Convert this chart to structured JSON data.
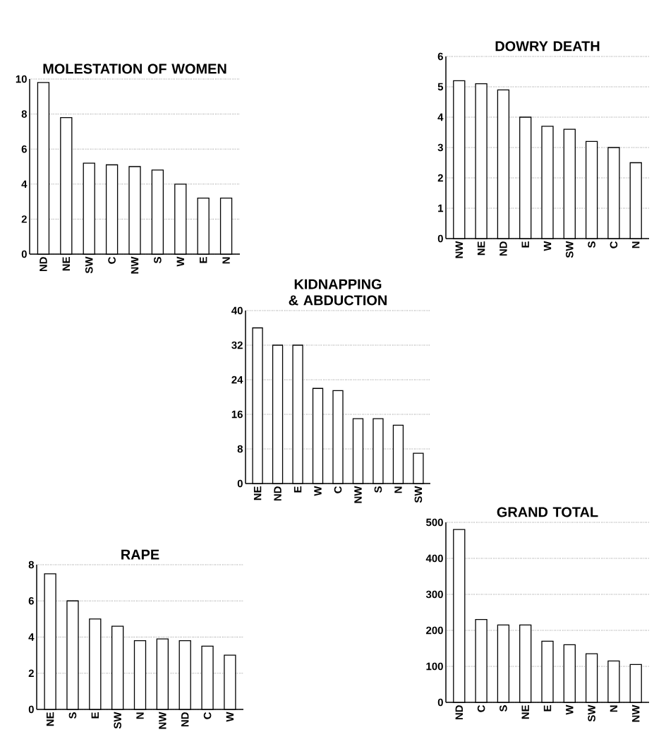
{
  "chart_data": [
    {
      "type": "bar",
      "title": "MOLESTATION OF WOMEN",
      "categories": [
        "ND",
        "NE",
        "SW",
        "C",
        "NW",
        "S",
        "W",
        "E",
        "N"
      ],
      "values": [
        9.8,
        7.8,
        5.2,
        5.1,
        5.0,
        4.8,
        4.0,
        3.2,
        3.2
      ],
      "color": "#ffffff",
      "ylim": [
        0,
        10
      ],
      "yticks": [
        0,
        2,
        4,
        6,
        8,
        10
      ],
      "grid": "y"
    },
    {
      "type": "bar",
      "title": "DOWRY DEATH",
      "categories": [
        "NW",
        "NE",
        "ND",
        "E",
        "W",
        "SW",
        "S",
        "C",
        "N"
      ],
      "values": [
        5.2,
        5.1,
        4.9,
        4.0,
        3.7,
        3.6,
        3.2,
        3.0,
        2.5
      ],
      "color": "#ffffff",
      "ylim": [
        0,
        6
      ],
      "yticks": [
        0,
        1,
        2,
        3,
        4,
        5,
        6
      ],
      "grid": "y"
    },
    {
      "type": "bar",
      "title": "KIDNAPPING & ABDUCTION",
      "categories": [
        "NE",
        "ND",
        "E",
        "W",
        "C",
        "NW",
        "S",
        "N",
        "SW"
      ],
      "values": [
        36,
        32,
        32,
        22,
        21.5,
        15,
        15,
        13.5,
        7
      ],
      "color": "#ffffff",
      "ylim": [
        0,
        40
      ],
      "yticks": [
        0,
        8,
        16,
        24,
        32,
        40
      ],
      "grid": "y"
    },
    {
      "type": "bar",
      "title": "RAPE",
      "categories": [
        "NE",
        "S",
        "E",
        "SW",
        "N",
        "NW",
        "ND",
        "C",
        "W"
      ],
      "values": [
        7.5,
        6.0,
        5.0,
        4.6,
        3.8,
        3.9,
        3.8,
        3.5,
        3.0
      ],
      "color": "#ffffff",
      "ylim": [
        0,
        8
      ],
      "yticks": [
        0,
        2,
        4,
        6,
        8
      ],
      "grid": "y"
    },
    {
      "type": "bar",
      "title": "GRAND TOTAL",
      "categories": [
        "ND",
        "C",
        "S",
        "NE",
        "E",
        "W",
        "SW",
        "N",
        "NW"
      ],
      "values": [
        480,
        230,
        215,
        215,
        170,
        160,
        135,
        115,
        105
      ],
      "color": "#ffffff",
      "ylim": [
        0,
        500
      ],
      "yticks": [
        0,
        100,
        200,
        300,
        400,
        500
      ],
      "grid": "y"
    }
  ]
}
